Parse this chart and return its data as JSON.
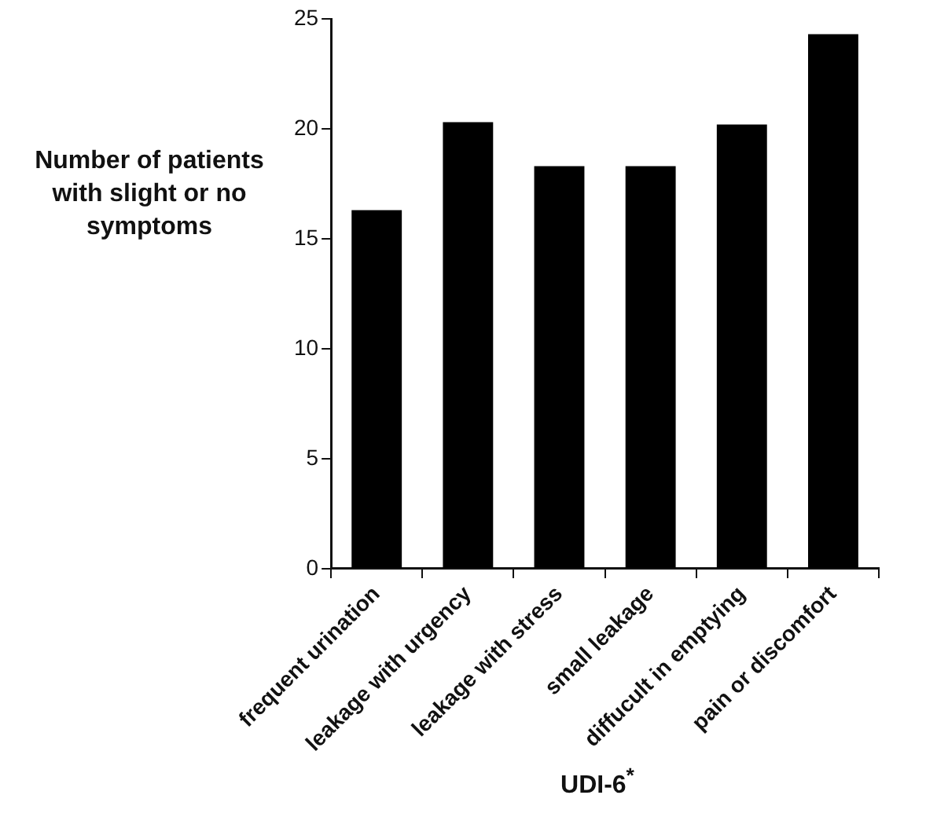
{
  "chart_data": {
    "type": "bar",
    "ylabel": "Number of patients with slight or no symptoms",
    "xlabel": "UDI-6$^{*}$",
    "categories": [
      "frequent urination",
      "leakage with urgency",
      "leakage with stress",
      "small leakage",
      "diffucult in emptying",
      "pain or discomfort"
    ],
    "values": [
      16.3,
      20.3,
      18.3,
      18.3,
      20.2,
      24.3
    ],
    "color": "#000000",
    "ylim": [
      0,
      25
    ],
    "yticks": [
      0,
      5,
      10,
      15,
      20,
      25
    ],
    "grid": false,
    "legend": false
  }
}
